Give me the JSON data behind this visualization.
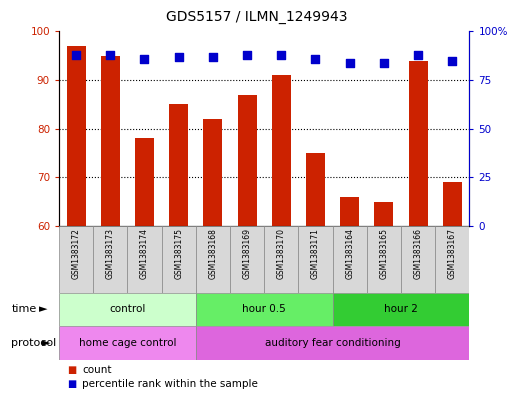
{
  "title": "GDS5157 / ILMN_1249943",
  "samples": [
    "GSM1383172",
    "GSM1383173",
    "GSM1383174",
    "GSM1383175",
    "GSM1383168",
    "GSM1383169",
    "GSM1383170",
    "GSM1383171",
    "GSM1383164",
    "GSM1383165",
    "GSM1383166",
    "GSM1383167"
  ],
  "bar_values": [
    97,
    95,
    78,
    85,
    82,
    87,
    91,
    75,
    66,
    65,
    94,
    69
  ],
  "dot_values_right": [
    88,
    88,
    86,
    87,
    87,
    88,
    88,
    86,
    84,
    84,
    88,
    85
  ],
  "bar_color": "#cc2200",
  "dot_color": "#0000cc",
  "ylim_left": [
    60,
    100
  ],
  "ylim_right": [
    0,
    100
  ],
  "yticks_left": [
    60,
    70,
    80,
    90,
    100
  ],
  "ytick_labels_left": [
    "60",
    "70",
    "80",
    "90",
    "100"
  ],
  "yticks_right_vals": [
    0,
    25,
    50,
    75,
    100
  ],
  "ytick_labels_right": [
    "0",
    "25",
    "50",
    "75",
    "100%"
  ],
  "time_groups": [
    {
      "label": "control",
      "start": 0,
      "end": 4,
      "color": "#ccffcc"
    },
    {
      "label": "hour 0.5",
      "start": 4,
      "end": 8,
      "color": "#66ee66"
    },
    {
      "label": "hour 2",
      "start": 8,
      "end": 12,
      "color": "#33cc33"
    }
  ],
  "protocol_groups": [
    {
      "label": "home cage control",
      "start": 0,
      "end": 4,
      "color": "#ee88ee"
    },
    {
      "label": "auditory fear conditioning",
      "start": 4,
      "end": 12,
      "color": "#ee88ee"
    }
  ],
  "legend_count_label": "count",
  "legend_percentile_label": "percentile rank within the sample",
  "time_label": "time",
  "protocol_label": "protocol",
  "bar_width": 0.55,
  "dot_size": 30,
  "background_color": "#ffffff",
  "plot_bg": "#ffffff",
  "left_axis_color": "#cc2200",
  "right_axis_color": "#0000cc",
  "label_bg_color": "#d8d8d8",
  "label_border_color": "#888888"
}
